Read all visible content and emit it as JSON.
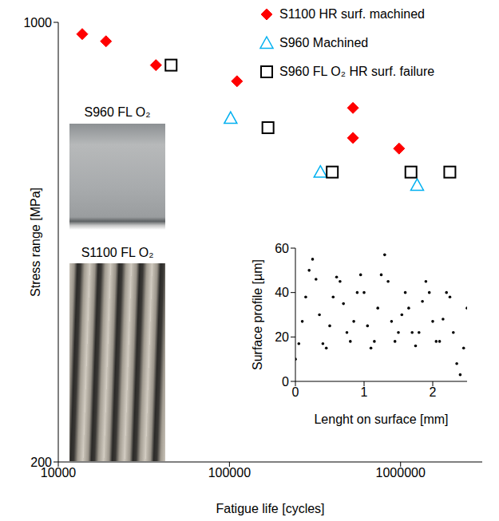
{
  "chart_data": [
    {
      "type": "scatter",
      "xlabel": "Fatigue life [cycles]",
      "ylabel": "Stress range [MPa]",
      "log": true,
      "grid": false,
      "legend": "top-right",
      "xlim": [
        10000,
        3000000
      ],
      "xticks": [
        10000,
        100000,
        1000000
      ],
      "ylim": [
        200,
        1000
      ],
      "yticks": [
        200,
        1000
      ],
      "annotations": [
        "S960 FL O₂",
        "S1100 FL O₂"
      ],
      "series": [
        {
          "name": "S1100 HR surf. machined",
          "color": "#ff0000",
          "marker": "diamond",
          "x": [
            13800,
            19000,
            37200,
            110700,
            527000,
            527000,
            980000
          ],
          "values": [
            958,
            933,
            855,
            806,
            731,
            655,
            630
          ]
        },
        {
          "name": "S960 Machined",
          "color": "#00b0f0",
          "marker": "triangle-open",
          "x": [
            101600,
            340000,
            1250000
          ],
          "values": [
            704,
            578,
            551
          ]
        },
        {
          "name": "S960 FL O₂ HR surf. failure",
          "color": "#000000",
          "marker": "square-open",
          "x": [
            45600,
            168000,
            399000,
            1150000,
            1940000
          ],
          "values": [
            855,
            680,
            578,
            578,
            578
          ]
        }
      ]
    },
    {
      "type": "scatter",
      "xlabel": "Lenght on surface [mm]",
      "ylabel": "Surface profile [µm]",
      "xlim": [
        0,
        2.5
      ],
      "xticks": [
        0,
        1,
        2
      ],
      "ylim": [
        0,
        60
      ],
      "yticks": [
        0,
        20,
        40,
        60
      ],
      "grid": false,
      "series": [
        {
          "name": "Surface profile",
          "color": "#000000",
          "marker": "dot",
          "x": [
            0,
            0.05,
            0.1,
            0.15,
            0.2,
            0.25,
            0.3,
            0.35,
            0.4,
            0.45,
            0.5,
            0.55,
            0.6,
            0.65,
            0.7,
            0.75,
            0.8,
            0.85,
            0.9,
            0.95,
            1,
            1.05,
            1.1,
            1.15,
            1.2,
            1.25,
            1.3,
            1.35,
            1.4,
            1.45,
            1.5,
            1.55,
            1.6,
            1.65,
            1.7,
            1.75,
            1.8,
            1.85,
            1.9,
            1.95,
            2,
            2.05,
            2.1,
            2.15,
            2.2,
            2.25,
            2.3,
            2.35,
            2.4,
            2.45,
            2.5
          ],
          "values": [
            10,
            17,
            27,
            38,
            50,
            55,
            46,
            30,
            17,
            15,
            25,
            38,
            47,
            45,
            35,
            22,
            18,
            27,
            40,
            48,
            40,
            25,
            15,
            18,
            33,
            48,
            57,
            45,
            27,
            18,
            22,
            30,
            40,
            33,
            22,
            16,
            22,
            36,
            45,
            40,
            27,
            18,
            18,
            28,
            40,
            38,
            22,
            8,
            3,
            15,
            33
          ]
        }
      ]
    }
  ]
}
